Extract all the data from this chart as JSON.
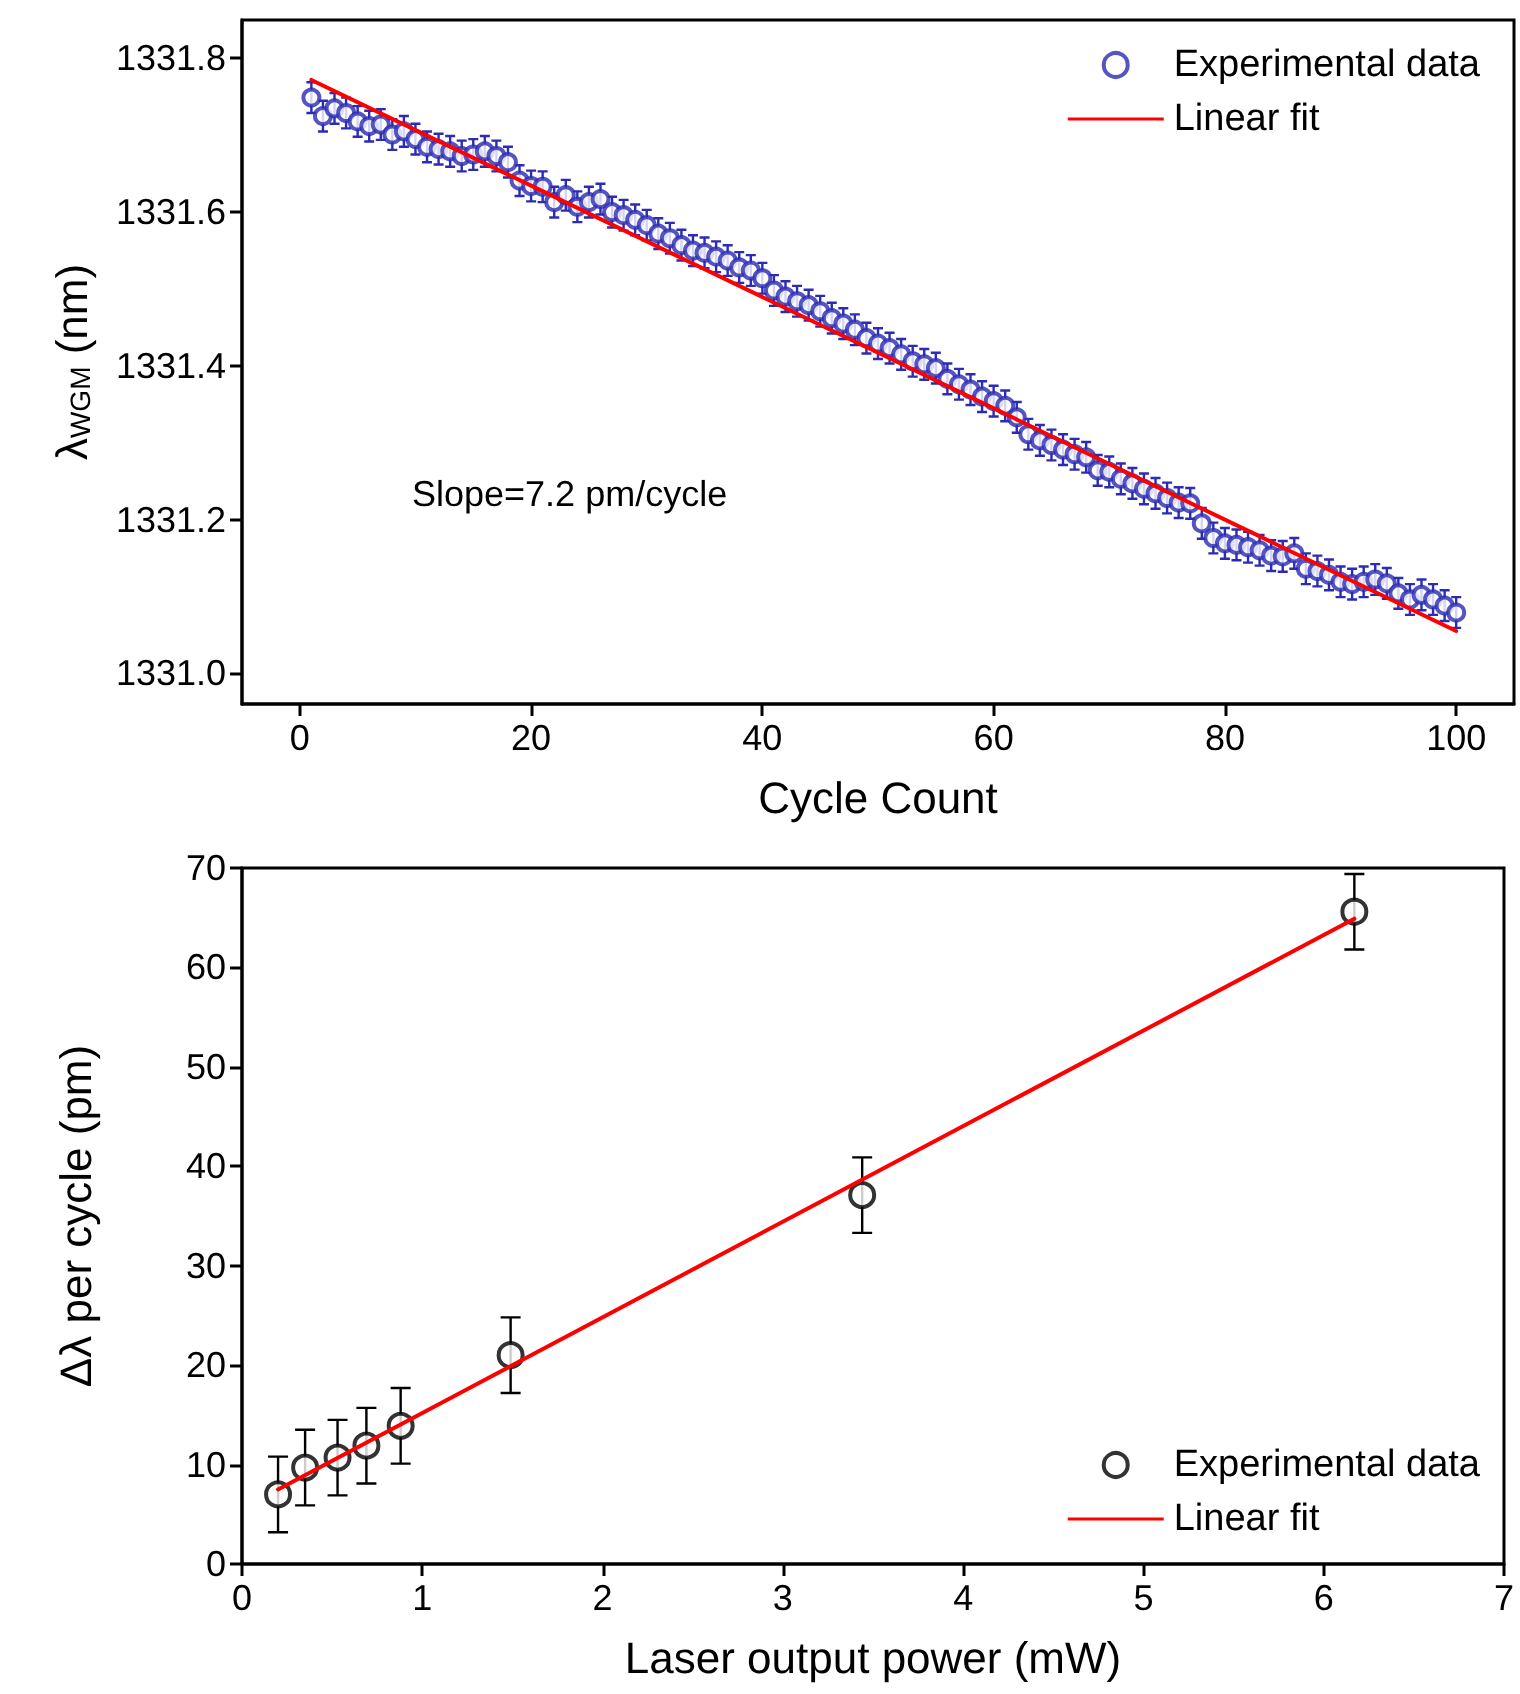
{
  "chart_data": [
    {
      "type": "scatter",
      "xlabel": "Cycle Count",
      "ylabel": "λ$_{WGM}$ (nm)",
      "annotations": [
        "Slope=7.2 pm/cycle"
      ],
      "xlim": [
        -5,
        105
      ],
      "xticks": [
        0,
        20,
        40,
        60,
        80,
        100
      ],
      "ylim": [
        1330.96,
        1331.85
      ],
      "yticks": [
        {
          "value": 1331.0,
          "label": "1331.0"
        },
        {
          "value": 1331.2,
          "label": "1331.2"
        },
        {
          "value": 1331.4,
          "label": "1331.4"
        },
        {
          "value": 1331.6,
          "label": "1331.6"
        },
        {
          "value": 1331.8,
          "label": "1331.8"
        }
      ],
      "legend": "top right",
      "marker": "circle",
      "grid": false,
      "series": [
        {
          "name": "Experimental data",
          "type": "scatter",
          "color": "#2b2bb3",
          "x": [
            1,
            2,
            3,
            4,
            5,
            6,
            7,
            8,
            9,
            10,
            11,
            12,
            13,
            14,
            15,
            16,
            17,
            18,
            19,
            20,
            21,
            22,
            23,
            24,
            25,
            26,
            27,
            28,
            29,
            30,
            31,
            32,
            33,
            34,
            35,
            36,
            37,
            38,
            39,
            40,
            41,
            42,
            43,
            44,
            45,
            46,
            47,
            48,
            49,
            50,
            51,
            52,
            53,
            54,
            55,
            56,
            57,
            58,
            59,
            60,
            61,
            62,
            63,
            64,
            65,
            66,
            67,
            68,
            69,
            70,
            71,
            72,
            73,
            74,
            75,
            76,
            77,
            78,
            79,
            80,
            81,
            82,
            83,
            84,
            85,
            86,
            87,
            88,
            89,
            90,
            91,
            92,
            93,
            94,
            95,
            96,
            97,
            98,
            99,
            100
          ],
          "values": [
            1331.749,
            1331.725,
            1331.735,
            1331.729,
            1331.718,
            1331.712,
            1331.714,
            1331.701,
            1331.705,
            1331.695,
            1331.685,
            1331.682,
            1331.679,
            1331.673,
            1331.675,
            1331.679,
            1331.673,
            1331.665,
            1331.641,
            1331.634,
            1331.633,
            1331.613,
            1331.622,
            1331.607,
            1331.613,
            1331.617,
            1331.6,
            1331.596,
            1331.59,
            1331.583,
            1331.572,
            1331.566,
            1331.557,
            1331.55,
            1331.547,
            1331.542,
            1331.537,
            1331.528,
            1331.524,
            1331.514,
            1331.498,
            1331.49,
            1331.484,
            1331.479,
            1331.471,
            1331.462,
            1331.455,
            1331.447,
            1331.436,
            1331.429,
            1331.423,
            1331.415,
            1331.406,
            1331.402,
            1331.397,
            1331.383,
            1331.376,
            1331.369,
            1331.36,
            1331.354,
            1331.348,
            1331.333,
            1331.311,
            1331.303,
            1331.297,
            1331.291,
            1331.285,
            1331.281,
            1331.264,
            1331.262,
            1331.253,
            1331.247,
            1331.24,
            1331.234,
            1331.228,
            1331.222,
            1331.221,
            1331.195,
            1331.176,
            1331.169,
            1331.167,
            1331.164,
            1331.16,
            1331.153,
            1331.152,
            1331.156,
            1331.136,
            1331.133,
            1331.128,
            1331.119,
            1331.116,
            1331.119,
            1331.122,
            1331.117,
            1331.104,
            1331.096,
            1331.102,
            1331.096,
            1331.088,
            1331.079
          ],
          "errors": [
            0.02,
            0.02,
            0.02,
            0.02,
            0.02,
            0.02,
            0.02,
            0.02,
            0.02,
            0.02,
            0.02,
            0.02,
            0.02,
            0.02,
            0.02,
            0.02,
            0.02,
            0.02,
            0.02,
            0.02,
            0.02,
            0.02,
            0.02,
            0.02,
            0.02,
            0.02,
            0.02,
            0.02,
            0.02,
            0.02,
            0.02,
            0.02,
            0.02,
            0.02,
            0.02,
            0.02,
            0.02,
            0.02,
            0.02,
            0.02,
            0.02,
            0.02,
            0.02,
            0.02,
            0.02,
            0.02,
            0.02,
            0.02,
            0.02,
            0.02,
            0.02,
            0.02,
            0.02,
            0.02,
            0.02,
            0.02,
            0.02,
            0.02,
            0.02,
            0.02,
            0.02,
            0.02,
            0.02,
            0.02,
            0.02,
            0.02,
            0.02,
            0.02,
            0.02,
            0.02,
            0.02,
            0.02,
            0.02,
            0.02,
            0.02,
            0.02,
            0.02,
            0.02,
            0.02,
            0.02,
            0.02,
            0.02,
            0.02,
            0.02,
            0.02,
            0.02,
            0.02,
            0.02,
            0.02,
            0.02,
            0.02,
            0.02,
            0.02,
            0.02,
            0.02,
            0.02,
            0.02,
            0.02,
            0.02,
            0.02
          ]
        },
        {
          "name": "Linear fit",
          "type": "line",
          "marker": "none",
          "line_style": "solid",
          "color": "#ff0000",
          "x": [
            1,
            100
          ],
          "values": [
            1331.772,
            1331.055
          ]
        }
      ]
    },
    {
      "type": "scatter",
      "xlabel": "Laser output power (mW)",
      "ylabel": "Δλ per cycle (pm)",
      "xlim": [
        0,
        7
      ],
      "xticks": [
        0,
        1,
        2,
        3,
        4,
        5,
        6,
        7
      ],
      "ylim": [
        0,
        70
      ],
      "yticks": [
        0,
        10,
        20,
        30,
        40,
        50,
        60,
        70
      ],
      "legend": "bottom right",
      "marker": "circle",
      "grid": false,
      "series": [
        {
          "name": "Experimental data",
          "type": "scatter",
          "color": "#000000",
          "x": [
            0.2,
            0.35,
            0.53,
            0.69,
            0.88,
            1.49,
            3.44,
            6.17
          ],
          "values": [
            7.0,
            9.7,
            10.7,
            11.9,
            13.9,
            21.0,
            37.1,
            65.6
          ],
          "errors": [
            3.8,
            3.8,
            3.8,
            3.8,
            3.8,
            3.8,
            3.8,
            3.8
          ]
        },
        {
          "name": "Linear fit",
          "type": "line",
          "marker": "none",
          "line_style": "solid",
          "color": "#ff0000",
          "x": [
            0.2,
            6.17
          ],
          "values": [
            7.5,
            64.9
          ]
        }
      ]
    }
  ]
}
